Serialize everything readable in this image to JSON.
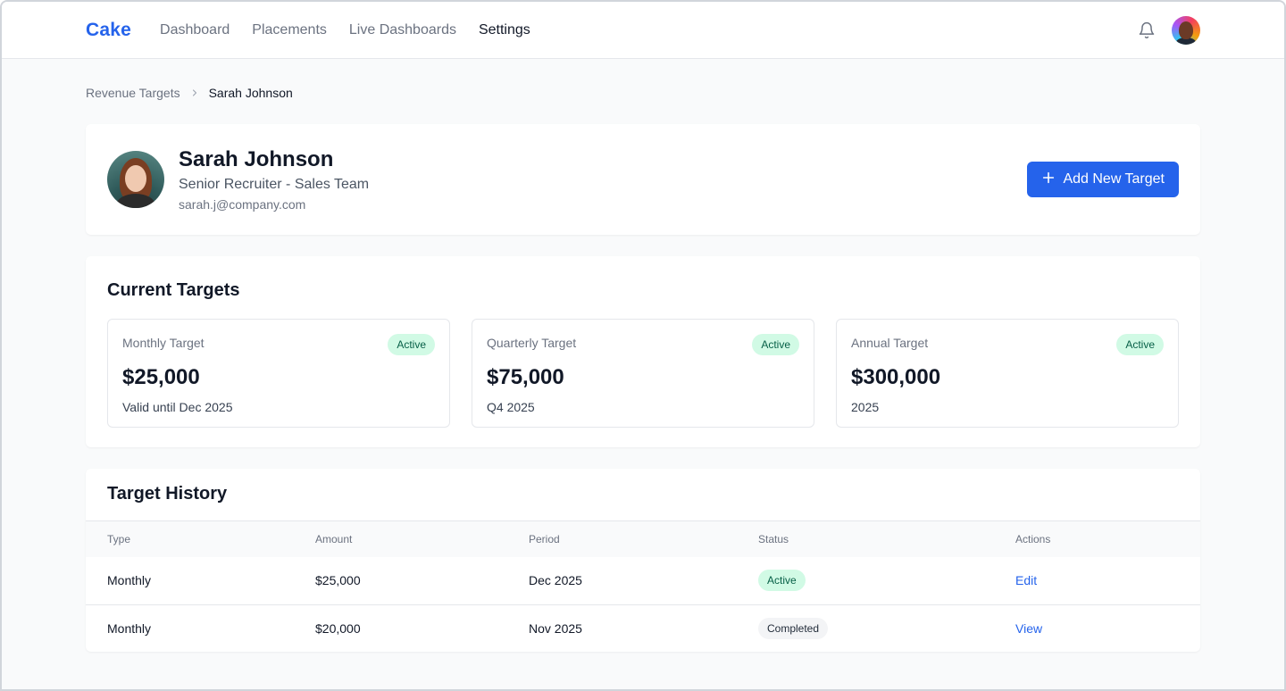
{
  "brand": "Cake",
  "nav": {
    "items": [
      {
        "label": "Dashboard",
        "active": false
      },
      {
        "label": "Placements",
        "active": false
      },
      {
        "label": "Live Dashboards",
        "active": false
      },
      {
        "label": "Settings",
        "active": true
      }
    ]
  },
  "header_icons": {
    "notifications": "bell-icon",
    "user": "user-avatar"
  },
  "breadcrumb": {
    "parent": "Revenue Targets",
    "current": "Sarah Johnson",
    "separator_icon": "chevron-right-icon"
  },
  "profile": {
    "name": "Sarah Johnson",
    "role": "Senior Recruiter - Sales Team",
    "email": "sarah.j@company.com",
    "add_button_label": "Add New Target",
    "add_button_icon": "plus-icon"
  },
  "current_targets": {
    "title": "Current Targets",
    "items": [
      {
        "label": "Monthly Target",
        "value": "$25,000",
        "sub": "Valid until Dec 2025",
        "status": "Active"
      },
      {
        "label": "Quarterly Target",
        "value": "$75,000",
        "sub": "Q4 2025",
        "status": "Active"
      },
      {
        "label": "Annual Target",
        "value": "$300,000",
        "sub": "2025",
        "status": "Active"
      }
    ]
  },
  "history": {
    "title": "Target History",
    "columns": [
      "Type",
      "Amount",
      "Period",
      "Status",
      "Actions"
    ],
    "rows": [
      {
        "type": "Monthly",
        "amount": "$25,000",
        "period": "Dec 2025",
        "status": "Active",
        "action": "Edit"
      },
      {
        "type": "Monthly",
        "amount": "$20,000",
        "period": "Nov 2025",
        "status": "Completed",
        "action": "View"
      }
    ]
  },
  "colors": {
    "accent": "#2563eb",
    "active_badge_bg": "#d1fae5",
    "active_badge_text": "#065f46",
    "completed_badge_bg": "#f3f4f6"
  }
}
